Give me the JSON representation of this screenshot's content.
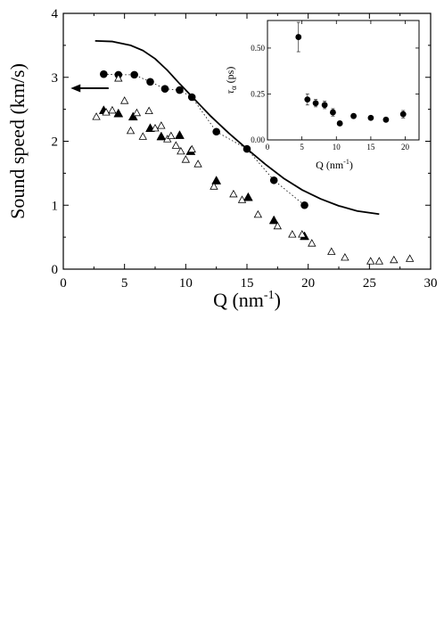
{
  "chart_data": [
    {
      "type": "scatter",
      "title": "",
      "xlabel": "Q (nm",
      "xlabel_sup": "-1",
      "xlabel_end": ")",
      "ylabel": "Sound speed (km/s)",
      "xlim": [
        0,
        30
      ],
      "ylim": [
        0,
        4
      ],
      "xticks": [
        "0",
        "5",
        "10",
        "15",
        "20",
        "25",
        "30"
      ],
      "yticks": [
        "0",
        "1",
        "2",
        "3",
        "4"
      ],
      "grid": false,
      "legend": "none",
      "series": [
        {
          "marker": "filled-circle",
          "connector": "dotted",
          "x": [
            3.3,
            4.5,
            5.8,
            7.1,
            8.3,
            9.5,
            10.5,
            12.5,
            15.0,
            17.2,
            19.7
          ],
          "y": [
            3.05,
            3.04,
            3.04,
            2.93,
            2.82,
            2.8,
            2.69,
            2.15,
            1.88,
            1.39,
            1.0
          ]
        },
        {
          "marker": "filled-triangle",
          "x": [
            3.3,
            4.5,
            5.7,
            7.1,
            8.0,
            9.5,
            10.4,
            12.5,
            15.1,
            17.2,
            19.7
          ],
          "y": [
            2.48,
            2.43,
            2.38,
            2.2,
            2.07,
            2.09,
            1.84,
            1.38,
            1.12,
            0.76,
            0.51
          ]
        },
        {
          "marker": "open-triangle",
          "x": [
            2.7,
            3.5,
            4.0,
            4.5,
            5.0,
            5.5,
            6.0,
            6.5,
            7.0,
            7.5,
            8.0,
            8.5,
            8.8,
            9.2,
            9.6,
            10.0,
            10.5,
            11.0,
            12.3,
            13.9,
            14.6,
            15.9,
            17.5,
            18.7,
            19.5,
            20.3,
            21.9,
            23.0,
            25.1,
            25.8,
            27.0,
            28.3
          ],
          "y": [
            2.38,
            2.45,
            2.48,
            2.98,
            2.63,
            2.16,
            2.44,
            2.07,
            2.47,
            2.2,
            2.24,
            2.03,
            2.08,
            1.93,
            1.84,
            1.71,
            1.87,
            1.64,
            1.29,
            1.17,
            1.08,
            0.85,
            0.67,
            0.54,
            0.54,
            0.4,
            0.27,
            0.18,
            0.12,
            0.12,
            0.14,
            0.16
          ]
        },
        {
          "marker": "none",
          "line": "solid",
          "x": [
            2.6,
            4.0,
            5.5,
            6.5,
            7.5,
            8.5,
            9.5,
            10.5,
            12.0,
            13.5,
            15.0,
            16.5,
            18.0,
            19.5,
            21.0,
            22.5,
            24.0,
            25.8
          ],
          "y": [
            3.57,
            3.56,
            3.5,
            3.42,
            3.29,
            3.11,
            2.9,
            2.7,
            2.4,
            2.13,
            1.88,
            1.64,
            1.42,
            1.24,
            1.1,
            0.99,
            0.91,
            0.86
          ]
        }
      ],
      "annotations": [
        {
          "type": "arrow",
          "direction": "left",
          "from": [
            3.7,
            2.83
          ],
          "to": [
            0.6,
            2.83
          ]
        }
      ]
    },
    {
      "type": "scatter",
      "title": "",
      "xlabel": "Q (nm",
      "xlabel_sup": "-1",
      "xlabel_end": ")",
      "ylabel": "τ",
      "ylabel_sub": "α",
      "ylabel_end": " (ps)",
      "xlim": [
        0,
        22
      ],
      "ylim": [
        0,
        0.65
      ],
      "xticks": [
        "0",
        "5",
        "10",
        "15",
        "20"
      ],
      "yticks": [
        "0.00",
        "0.25",
        "0.50"
      ],
      "grid": false,
      "legend": "none",
      "series": [
        {
          "marker": "filled-circle",
          "error_bars": true,
          "x": [
            4.5,
            5.8,
            7.0,
            8.3,
            9.5,
            10.5,
            12.5,
            15.0,
            17.2,
            19.7
          ],
          "y": [
            0.56,
            0.22,
            0.2,
            0.19,
            0.15,
            0.09,
            0.13,
            0.12,
            0.11,
            0.14
          ],
          "err": [
            0.08,
            0.03,
            0.02,
            0.02,
            0.02,
            0.01,
            0.01,
            0.01,
            0.01,
            0.02
          ]
        }
      ]
    }
  ]
}
